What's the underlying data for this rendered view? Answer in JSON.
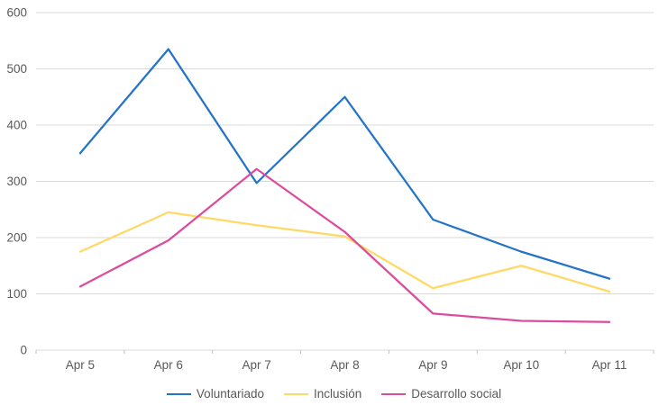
{
  "chart_data": {
    "type": "line",
    "title": "",
    "xlabel": "",
    "ylabel": "",
    "categories": [
      "Apr 5",
      "Apr 6",
      "Apr 7",
      "Apr 8",
      "Apr 9",
      "Apr 10",
      "Apr 11"
    ],
    "series": [
      {
        "name": "Voluntariado",
        "color": "#2374C8",
        "values": [
          350,
          535,
          297,
          450,
          232,
          175,
          127
        ]
      },
      {
        "name": "Inclusión",
        "color": "#FFD966",
        "values": [
          175,
          245,
          222,
          202,
          110,
          150,
          104
        ]
      },
      {
        "name": "Desarrollo social",
        "color": "#DC4C9D",
        "values": [
          113,
          195,
          322,
          210,
          65,
          52,
          50
        ]
      }
    ],
    "ylim": [
      0,
      600
    ],
    "ytick_step": 100,
    "ytick_labels": [
      "0",
      "100",
      "200",
      "300",
      "400",
      "500",
      "600"
    ],
    "grid": true,
    "legend_position": "bottom"
  },
  "colors": {
    "gridline": "#D9D9D9",
    "axis_line": "#D9D9D9",
    "tick_mark": "#BFBFBF",
    "axis_label": "#595959",
    "legend_text": "#595959",
    "background": "#FFFFFF"
  }
}
